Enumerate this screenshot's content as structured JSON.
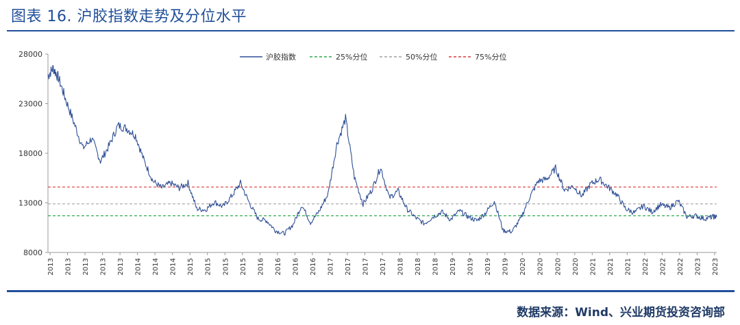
{
  "header": {
    "title": "图表 16.  沪胶指数走势及分位水平"
  },
  "footer": {
    "source": "数据来源：Wind、兴业期货投资咨询部"
  },
  "colors": {
    "series": "#2e4e95",
    "p25": "#2fa84f",
    "p50": "#a0a0a0",
    "p75": "#d93b3b",
    "title": "#1f4e9a"
  },
  "chart_data": {
    "type": "line",
    "title": "",
    "xlabel": "",
    "ylabel": "",
    "ylim": [
      8000,
      28000
    ],
    "yticks": [
      8000,
      13000,
      18000,
      23000,
      28000
    ],
    "xtick_labels": [
      "2013",
      "2013",
      "2013",
      "2013",
      "2013",
      "2014",
      "2014",
      "2014",
      "2015",
      "2015",
      "2015",
      "2015",
      "2016",
      "2016",
      "2016",
      "2016",
      "2017",
      "2017",
      "2017",
      "2017",
      "2018",
      "2018",
      "2018",
      "2019",
      "2019",
      "2019",
      "2019",
      "2020",
      "2020",
      "2020",
      "2020",
      "2021",
      "2021",
      "2021",
      "2022",
      "2022",
      "2022",
      "2023",
      "2023"
    ],
    "legend": {
      "position": "top-center",
      "entries": [
        "沪胶指数",
        "25%分位",
        "50%分位",
        "75%分位"
      ]
    },
    "grid": false,
    "series": [
      {
        "name": "沪胶指数",
        "x": [
          0,
          0.3,
          0.6,
          1.0,
          1.5,
          2.0,
          2.5,
          3.0,
          3.5,
          4.0,
          4.5,
          5.0,
          5.5,
          6.0,
          6.5,
          7.0,
          7.5,
          8.0,
          8.5,
          9.0,
          9.5,
          10.0,
          10.5,
          11.0,
          11.5,
          12.0,
          12.5,
          13.0,
          13.5,
          14.0,
          14.5,
          15.0,
          15.5,
          16.0,
          16.5,
          17.0,
          17.5,
          18.0,
          18.5,
          19.0,
          19.5,
          20.0,
          20.5,
          21.0,
          21.5,
          22.0,
          22.5,
          23.0,
          23.5,
          24.0,
          24.5,
          25.0,
          25.5,
          26.0,
          26.5,
          27.0,
          27.5,
          28.0,
          28.5,
          29.0,
          29.5,
          30.0,
          30.5,
          31.0,
          31.5,
          32.0,
          32.5,
          33.0,
          33.5,
          34.0,
          34.5,
          35.0,
          35.5,
          36.0,
          36.5,
          37.0,
          37.5,
          38.0,
          38.2
        ],
        "values": [
          25800,
          26600,
          25600,
          23500,
          21000,
          18500,
          19500,
          17200,
          18800,
          20800,
          20500,
          19800,
          17200,
          15200,
          14500,
          15000,
          14500,
          15000,
          12400,
          12300,
          13100,
          12600,
          13700,
          15000,
          13000,
          11400,
          11200,
          10200,
          9900,
          10800,
          12800,
          11000,
          12200,
          13900,
          18900,
          21500,
          15600,
          12900,
          14300,
          16600,
          13500,
          14200,
          12400,
          11500,
          10900,
          11600,
          12100,
          11300,
          12200,
          11600,
          11200,
          12000,
          13200,
          10200,
          10100,
          11400,
          13500,
          15200,
          15400,
          16500,
          14300,
          14700,
          13700,
          14900,
          15400,
          14600,
          13800,
          12400,
          12000,
          12700,
          12100,
          12800,
          12500,
          13200,
          11600,
          11700,
          11400,
          11600,
          11600
        ]
      }
    ],
    "percentiles": {
      "p25": 11700,
      "p50": 12900,
      "p75": 14600
    }
  }
}
